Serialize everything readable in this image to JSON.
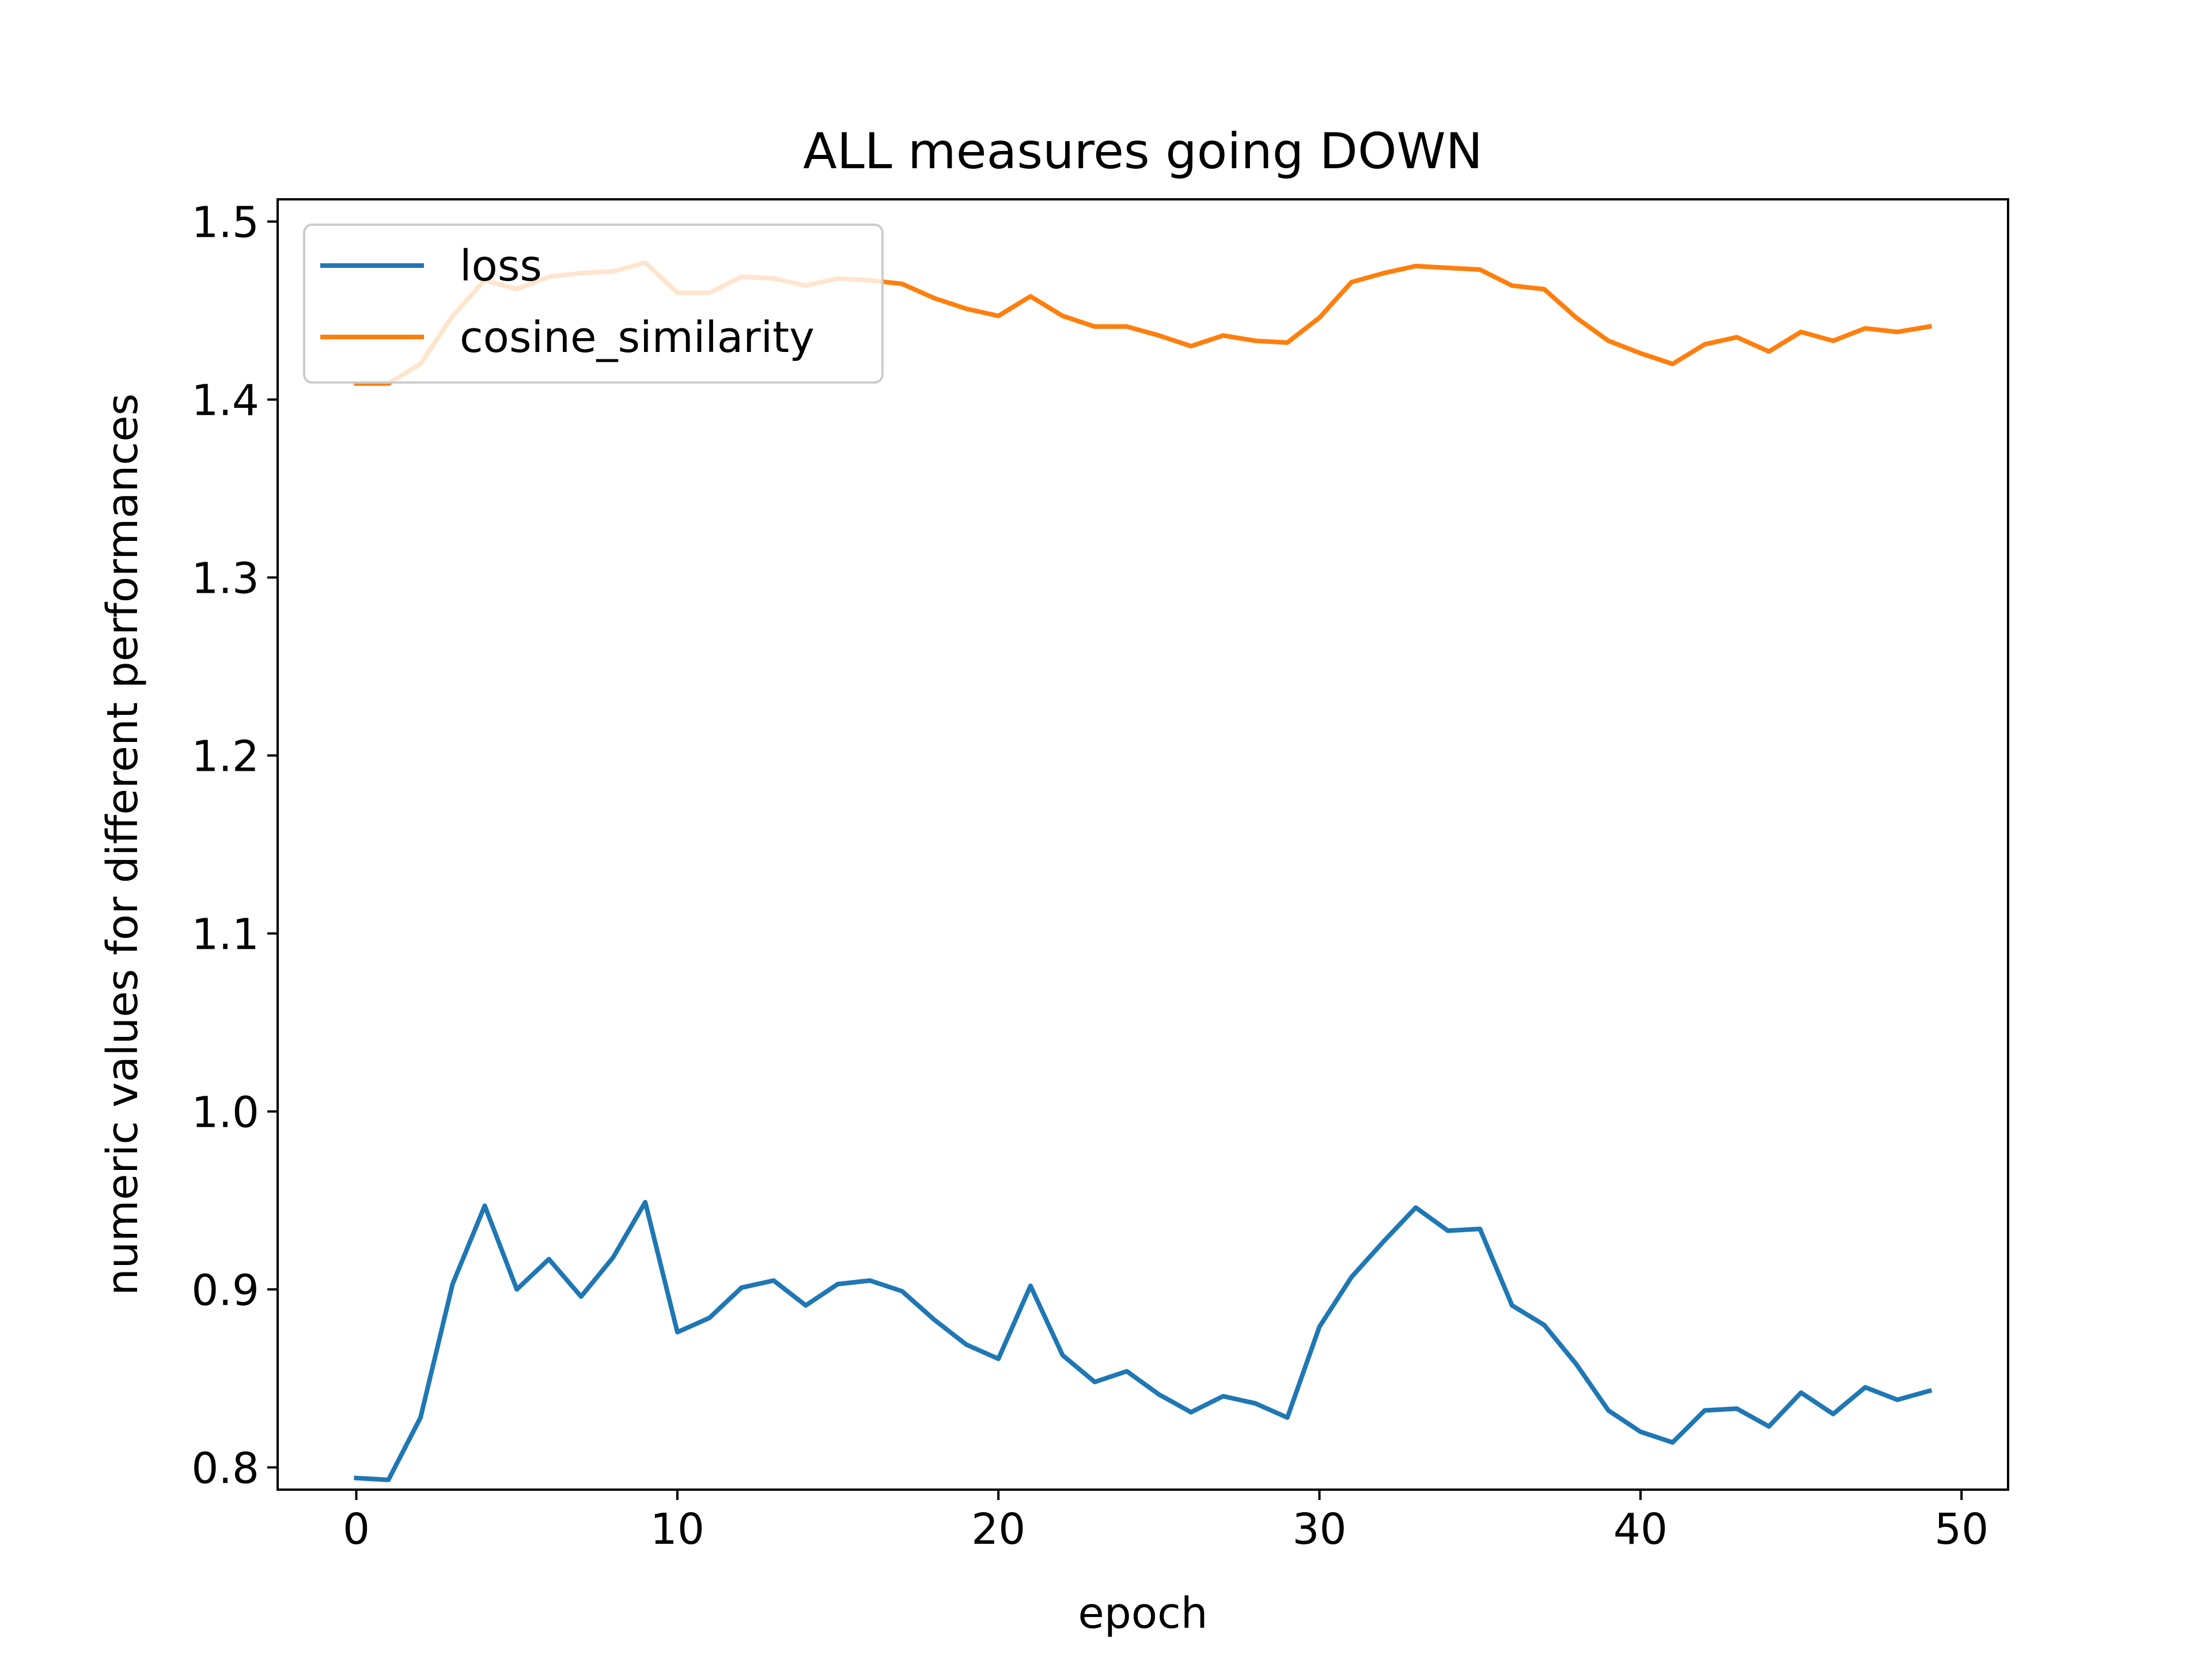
{
  "chart_data": {
    "type": "line",
    "title": "ALL measures going DOWN",
    "xlabel": "epoch",
    "ylabel": "numeric values for different performances",
    "xlim": [
      -2.45,
      51.45
    ],
    "ylim": [
      0.7875,
      1.5125
    ],
    "xticks": [
      0,
      10,
      20,
      30,
      40,
      50
    ],
    "yticks": [
      0.8,
      0.9,
      1.0,
      1.1,
      1.2,
      1.3,
      1.4,
      1.5
    ],
    "xtick_labels": [
      "0",
      "10",
      "20",
      "30",
      "40",
      "50"
    ],
    "ytick_labels": [
      "0.8",
      "0.9",
      "1.0",
      "1.1",
      "1.2",
      "1.3",
      "1.4",
      "1.5"
    ],
    "grid": false,
    "legend_position": "top-left",
    "x": [
      0,
      1,
      2,
      3,
      4,
      5,
      6,
      7,
      8,
      9,
      10,
      11,
      12,
      13,
      14,
      15,
      16,
      17,
      18,
      19,
      20,
      21,
      22,
      23,
      24,
      25,
      26,
      27,
      28,
      29,
      30,
      31,
      32,
      33,
      34,
      35,
      36,
      37,
      38,
      39,
      40,
      41,
      42,
      43,
      44,
      45,
      46,
      47,
      48,
      49
    ],
    "series": [
      {
        "name": "loss",
        "color": "#1f77b4",
        "values": [
          0.794,
          0.793,
          0.828,
          0.903,
          0.947,
          0.9,
          0.917,
          0.896,
          0.918,
          0.949,
          0.876,
          0.884,
          0.901,
          0.905,
          0.891,
          0.903,
          0.905,
          0.899,
          0.883,
          0.869,
          0.861,
          0.902,
          0.863,
          0.848,
          0.854,
          0.841,
          0.831,
          0.84,
          0.836,
          0.828,
          0.879,
          0.907,
          0.927,
          0.946,
          0.933,
          0.934,
          0.891,
          0.88,
          0.858,
          0.832,
          0.82,
          0.814,
          0.832,
          0.833,
          0.823,
          0.842,
          0.83,
          0.845,
          0.838,
          0.843
        ]
      },
      {
        "name": "cosine_similarity",
        "color": "#ff7f0e",
        "values": [
          1.409,
          1.409,
          1.42,
          1.447,
          1.467,
          1.462,
          1.469,
          1.471,
          1.472,
          1.477,
          1.46,
          1.46,
          1.469,
          1.468,
          1.464,
          1.468,
          1.467,
          1.465,
          1.457,
          1.451,
          1.447,
          1.458,
          1.447,
          1.441,
          1.441,
          1.436,
          1.43,
          1.436,
          1.433,
          1.432,
          1.446,
          1.466,
          1.471,
          1.475,
          1.474,
          1.473,
          1.464,
          1.462,
          1.446,
          1.433,
          1.426,
          1.42,
          1.431,
          1.435,
          1.427,
          1.438,
          1.433,
          1.44,
          1.438,
          1.441
        ]
      }
    ]
  }
}
